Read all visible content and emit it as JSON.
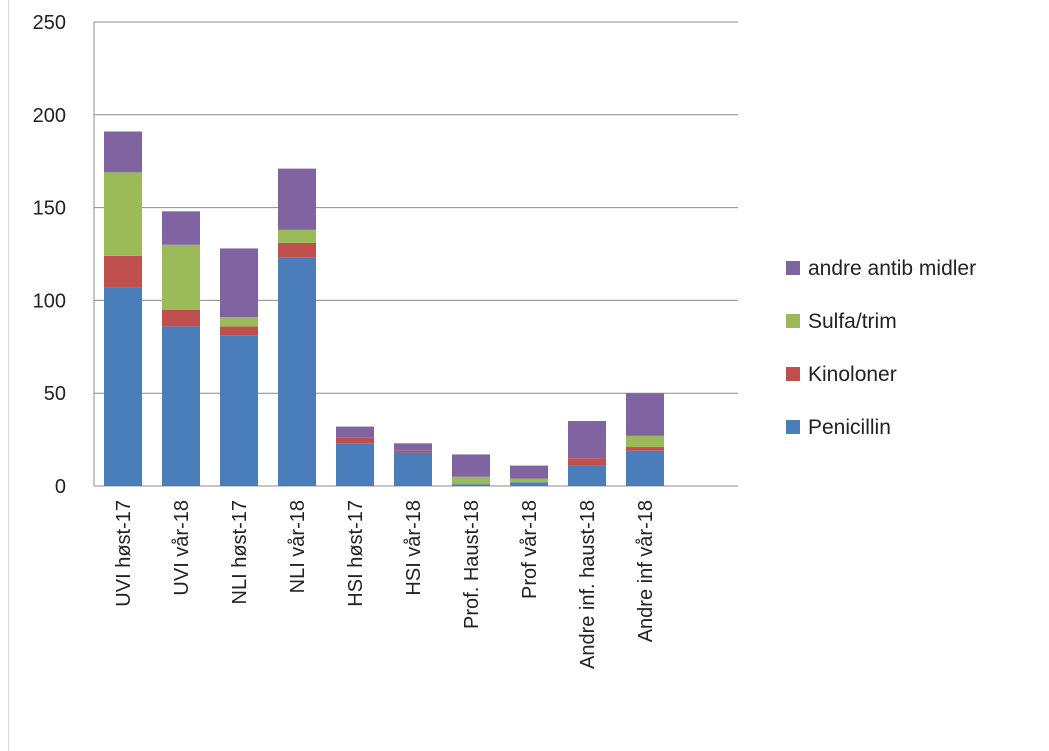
{
  "chart_data": {
    "type": "bar",
    "stacked": true,
    "categories": [
      "UVI høst-17",
      "UVI vår-18",
      "NLI høst-17",
      "NLI vår-18",
      "HSI høst-17",
      "HSI vår-18",
      "Prof. Haust-18",
      "Prof vår-18",
      "Andre inf. haust-18",
      "Andre inf vår-18"
    ],
    "series": [
      {
        "name": "Penicillin",
        "color": "#4a7ebb",
        "values": [
          107,
          86,
          81,
          123,
          23,
          18,
          1,
          2,
          11,
          19
        ]
      },
      {
        "name": "Kinoloner",
        "color": "#c0504d",
        "values": [
          17,
          9,
          5,
          8,
          3,
          1,
          0,
          0,
          4,
          2
        ]
      },
      {
        "name": "Sulfa/trim",
        "color": "#9bbb59",
        "values": [
          45,
          35,
          5,
          7,
          0,
          0,
          4,
          2,
          0,
          6
        ]
      },
      {
        "name": "andre antib midler",
        "color": "#8064a2",
        "values": [
          22,
          18,
          37,
          33,
          6,
          4,
          12,
          7,
          20,
          23
        ]
      }
    ],
    "yticks": [
      0,
      50,
      100,
      150,
      200,
      250
    ],
    "ylim": [
      0,
      250
    ],
    "grid": true,
    "legend_position": "right",
    "title": "",
    "xlabel": "",
    "ylabel": ""
  }
}
